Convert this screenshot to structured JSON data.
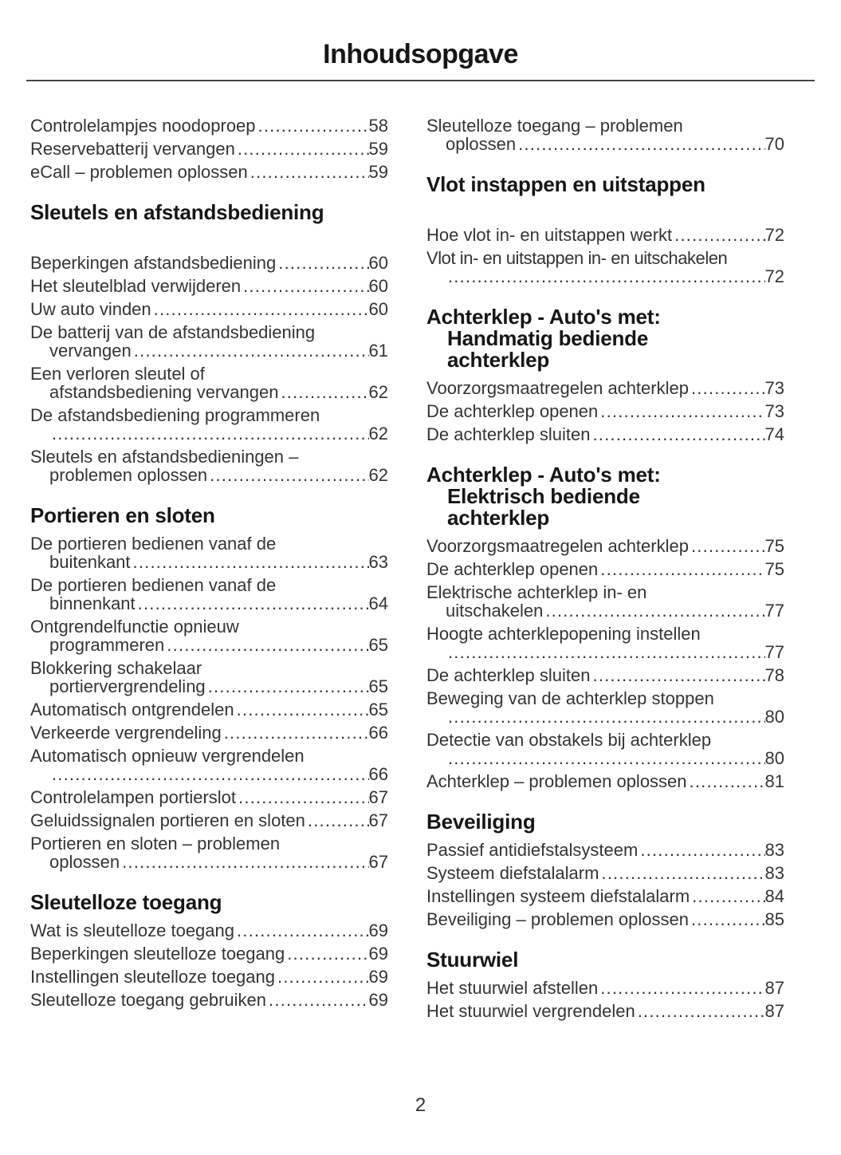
{
  "header": {
    "title": "Inhoudsopgave"
  },
  "footer": {
    "page_number": "2"
  },
  "toc": {
    "columns": [
      {
        "blocks": [
          {
            "heading": null,
            "entries": [
              {
                "lines": [
                  {
                    "text": "Controlelampjes noodoproep",
                    "page": "58"
                  }
                ]
              },
              {
                "lines": [
                  {
                    "text": "Reservebatterij vervangen",
                    "page": "59"
                  }
                ]
              },
              {
                "lines": [
                  {
                    "text": "eCall – problemen oplossen",
                    "page": "59"
                  }
                ]
              }
            ]
          },
          {
            "heading": [
              "Sleutels en afstandsbediening"
            ],
            "extra_gap": true,
            "entries": [
              {
                "lines": [
                  {
                    "text": "Beperkingen afstandsbediening",
                    "page": "60"
                  }
                ]
              },
              {
                "lines": [
                  {
                    "text": "Het sleutelblad verwijderen",
                    "page": "60"
                  }
                ]
              },
              {
                "lines": [
                  {
                    "text": "Uw auto vinden",
                    "page": "60"
                  }
                ]
              },
              {
                "lines": [
                  {
                    "text": "De batterij van de afstandsbediening"
                  },
                  {
                    "text": "vervangen",
                    "page": "61",
                    "indent": true
                  }
                ]
              },
              {
                "lines": [
                  {
                    "text": "Een verloren sleutel of"
                  },
                  {
                    "text": "afstandsbediening vervangen",
                    "page": "62",
                    "indent": true
                  }
                ]
              },
              {
                "lines": [
                  {
                    "text": "De afstandsbediening programmeren"
                  },
                  {
                    "text": "",
                    "page": "62",
                    "indent": true
                  }
                ]
              },
              {
                "lines": [
                  {
                    "text": "Sleutels en afstandsbedieningen –"
                  },
                  {
                    "text": "problemen oplossen",
                    "page": "62",
                    "indent": true
                  }
                ]
              }
            ]
          },
          {
            "heading": [
              "Portieren en sloten"
            ],
            "entries": [
              {
                "lines": [
                  {
                    "text": "De portieren bedienen vanaf de"
                  },
                  {
                    "text": "buitenkant",
                    "page": "63",
                    "indent": true
                  }
                ]
              },
              {
                "lines": [
                  {
                    "text": "De portieren bedienen vanaf de"
                  },
                  {
                    "text": "binnenkant",
                    "page": "64",
                    "indent": true
                  }
                ]
              },
              {
                "lines": [
                  {
                    "text": "Ontgrendelfunctie opnieuw"
                  },
                  {
                    "text": "programmeren",
                    "page": "65",
                    "indent": true
                  }
                ]
              },
              {
                "lines": [
                  {
                    "text": "Blokkering schakelaar"
                  },
                  {
                    "text": "portiervergrendeling",
                    "page": "65",
                    "indent": true
                  }
                ]
              },
              {
                "lines": [
                  {
                    "text": "Automatisch ontgrendelen",
                    "page": "65"
                  }
                ]
              },
              {
                "lines": [
                  {
                    "text": "Verkeerde vergrendeling",
                    "page": "66"
                  }
                ]
              },
              {
                "lines": [
                  {
                    "text": "Automatisch opnieuw vergrendelen"
                  },
                  {
                    "text": "",
                    "page": "66",
                    "indent": true
                  }
                ]
              },
              {
                "lines": [
                  {
                    "text": "Controlelampen portierslot",
                    "page": "67"
                  }
                ]
              },
              {
                "lines": [
                  {
                    "text": "Geluidssignalen portieren en sloten",
                    "page": "67"
                  }
                ]
              },
              {
                "lines": [
                  {
                    "text": "Portieren en sloten – problemen"
                  },
                  {
                    "text": "oplossen",
                    "page": "67",
                    "indent": true
                  }
                ]
              }
            ]
          },
          {
            "heading": [
              "Sleutelloze toegang"
            ],
            "entries": [
              {
                "lines": [
                  {
                    "text": "Wat is sleutelloze toegang",
                    "page": "69"
                  }
                ]
              },
              {
                "lines": [
                  {
                    "text": "Beperkingen sleutelloze toegang",
                    "page": "69"
                  }
                ]
              },
              {
                "lines": [
                  {
                    "text": "Instellingen sleutelloze toegang",
                    "page": "69"
                  }
                ]
              },
              {
                "lines": [
                  {
                    "text": "Sleutelloze toegang gebruiken",
                    "page": "69"
                  }
                ]
              }
            ]
          }
        ]
      },
      {
        "blocks": [
          {
            "heading": null,
            "entries": [
              {
                "lines": [
                  {
                    "text": "Sleutelloze toegang – problemen"
                  },
                  {
                    "text": "oplossen",
                    "page": "70",
                    "indent": true
                  }
                ]
              }
            ]
          },
          {
            "heading": [
              "Vlot instappen en uitstappen"
            ],
            "extra_gap": true,
            "entries": [
              {
                "lines": [
                  {
                    "text": "Hoe vlot in- en uitstappen werkt",
                    "page": "72"
                  }
                ]
              },
              {
                "lines": [
                  {
                    "text": "Vlot in- en uitstappen in- en uitschakelen",
                    "condensed": true
                  },
                  {
                    "text": "",
                    "page": "72",
                    "indent": true
                  }
                ]
              }
            ]
          },
          {
            "heading": [
              "Achterklep - Auto's met:",
              "Handmatig bediende",
              "achterklep"
            ],
            "entries": [
              {
                "lines": [
                  {
                    "text": "Voorzorgsmaatregelen achterklep",
                    "page": "73"
                  }
                ]
              },
              {
                "lines": [
                  {
                    "text": "De achterklep openen",
                    "page": "73"
                  }
                ]
              },
              {
                "lines": [
                  {
                    "text": "De achterklep sluiten",
                    "page": "74"
                  }
                ]
              }
            ]
          },
          {
            "heading": [
              "Achterklep - Auto's met:",
              "Elektrisch bediende",
              "achterklep"
            ],
            "entries": [
              {
                "lines": [
                  {
                    "text": "Voorzorgsmaatregelen achterklep",
                    "page": "75"
                  }
                ]
              },
              {
                "lines": [
                  {
                    "text": "De achterklep openen",
                    "page": "75"
                  }
                ]
              },
              {
                "lines": [
                  {
                    "text": "Elektrische achterklep in- en"
                  },
                  {
                    "text": "uitschakelen",
                    "page": "77",
                    "indent": true
                  }
                ]
              },
              {
                "lines": [
                  {
                    "text": "Hoogte achterklepopening instellen"
                  },
                  {
                    "text": "",
                    "page": "77",
                    "indent": true
                  }
                ]
              },
              {
                "lines": [
                  {
                    "text": "De achterklep sluiten",
                    "page": "78"
                  }
                ]
              },
              {
                "lines": [
                  {
                    "text": "Beweging van de achterklep stoppen"
                  },
                  {
                    "text": "",
                    "page": "80",
                    "indent": true
                  }
                ]
              },
              {
                "lines": [
                  {
                    "text": "Detectie van obstakels bij achterklep"
                  },
                  {
                    "text": "",
                    "page": "80",
                    "indent": true
                  }
                ]
              },
              {
                "lines": [
                  {
                    "text": "Achterklep – problemen oplossen",
                    "page": "81"
                  }
                ]
              }
            ]
          },
          {
            "heading": [
              "Beveiliging"
            ],
            "entries": [
              {
                "lines": [
                  {
                    "text": "Passief antidiefstalsysteem",
                    "page": "83"
                  }
                ]
              },
              {
                "lines": [
                  {
                    "text": "Systeem diefstalalarm",
                    "page": "83"
                  }
                ]
              },
              {
                "lines": [
                  {
                    "text": "Instellingen systeem diefstalalarm",
                    "page": "84"
                  }
                ]
              },
              {
                "lines": [
                  {
                    "text": "Beveiliging – problemen oplossen",
                    "page": "85"
                  }
                ]
              }
            ]
          },
          {
            "heading": [
              "Stuurwiel"
            ],
            "entries": [
              {
                "lines": [
                  {
                    "text": "Het stuurwiel afstellen",
                    "page": "87"
                  }
                ]
              },
              {
                "lines": [
                  {
                    "text": "Het stuurwiel vergrendelen",
                    "page": "87"
                  }
                ]
              }
            ]
          }
        ]
      }
    ]
  }
}
